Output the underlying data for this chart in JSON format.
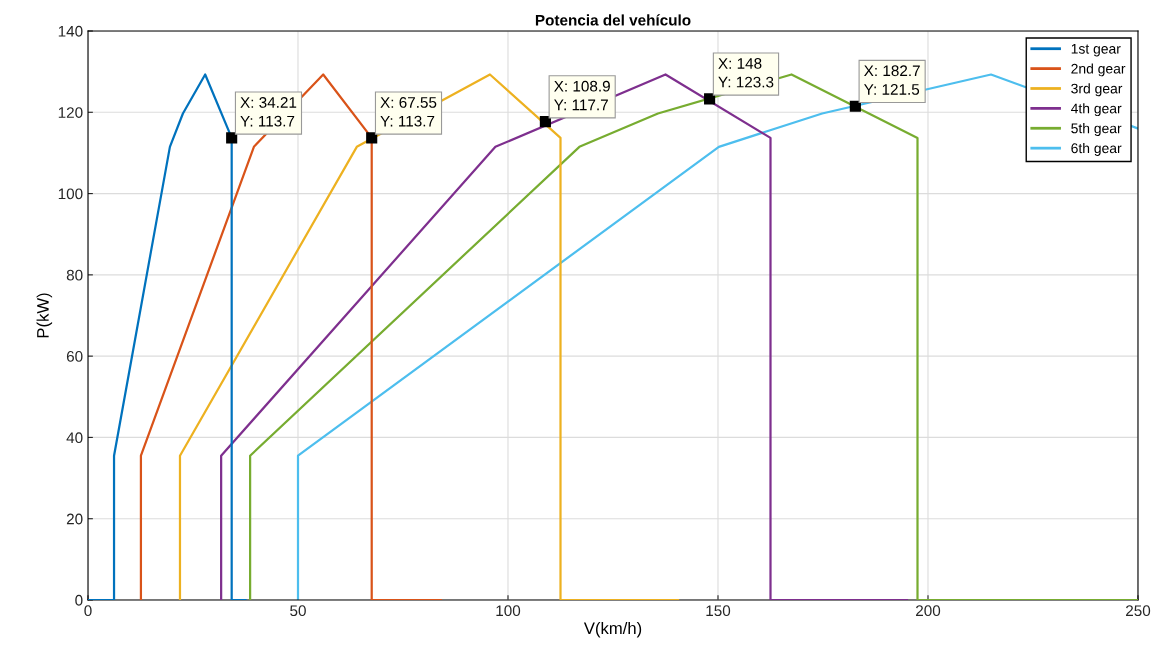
{
  "chart_data": {
    "type": "line",
    "title": "Potencia del vehículo",
    "xlabel": "V(km/h)",
    "ylabel": "P(kW)",
    "xlim": [
      0,
      250
    ],
    "ylim": [
      0,
      140
    ],
    "xticks": [
      0,
      50,
      100,
      150,
      200,
      250
    ],
    "yticks": [
      0,
      20,
      40,
      60,
      80,
      100,
      120,
      140
    ],
    "grid": true,
    "legend": "top right",
    "line_style": "solid",
    "marker": "none",
    "series": [
      {
        "name": "1st gear",
        "color": "#0072bd",
        "x": [
          0,
          6.2,
          6.2,
          19.5,
          22.6,
          27.9,
          34.21,
          34.21,
          37.5
        ],
        "values": [
          0,
          0,
          35.5,
          111.5,
          119.7,
          129.3,
          113.7,
          0,
          0
        ]
      },
      {
        "name": "2nd gear",
        "color": "#d95319",
        "x": [
          12.6,
          12.6,
          39.5,
          56,
          67.55,
          67.55,
          84
        ],
        "values": [
          0,
          35.5,
          111.5,
          129.3,
          113.7,
          0,
          0
        ]
      },
      {
        "name": "3rd gear",
        "color": "#edb120",
        "x": [
          21.9,
          21.9,
          64,
          95.7,
          112.5,
          112.5,
          140.5
        ],
        "values": [
          0,
          35.5,
          111.5,
          129.3,
          113.7,
          0,
          0
        ]
      },
      {
        "name": "4th gear",
        "color": "#7e2f8e",
        "x": [
          31.7,
          31.7,
          97,
          137.5,
          162.5,
          162.5,
          195
        ],
        "values": [
          0,
          35.5,
          111.5,
          129.3,
          113.7,
          0,
          0
        ]
      },
      {
        "name": "5th gear",
        "color": "#77ac30",
        "x": [
          38.6,
          38.6,
          117,
          135.7,
          167.5,
          197.5,
          197.5,
          250
        ],
        "values": [
          0,
          35.5,
          111.5,
          119.7,
          129.3,
          113.7,
          0,
          0
        ]
      },
      {
        "name": "6th gear",
        "color": "#4dbeee",
        "x": [
          50,
          50,
          150.2,
          174.8,
          215,
          250
        ],
        "values": [
          0,
          35.5,
          111.5,
          119.7,
          129.3,
          116
        ]
      }
    ],
    "annotations": [
      {
        "text": "X: 34.21\nY: 113.7",
        "x": 34.21,
        "y": 113.7
      },
      {
        "text": "X: 67.55\nY: 113.7",
        "x": 67.55,
        "y": 113.7
      },
      {
        "text": "X: 108.9\nY: 117.7",
        "x": 108.9,
        "y": 117.7
      },
      {
        "text": "X: 148\nY: 123.3",
        "x": 148,
        "y": 123.3
      },
      {
        "text": "X: 182.7\nY: 121.5",
        "x": 182.7,
        "y": 121.5
      }
    ]
  }
}
